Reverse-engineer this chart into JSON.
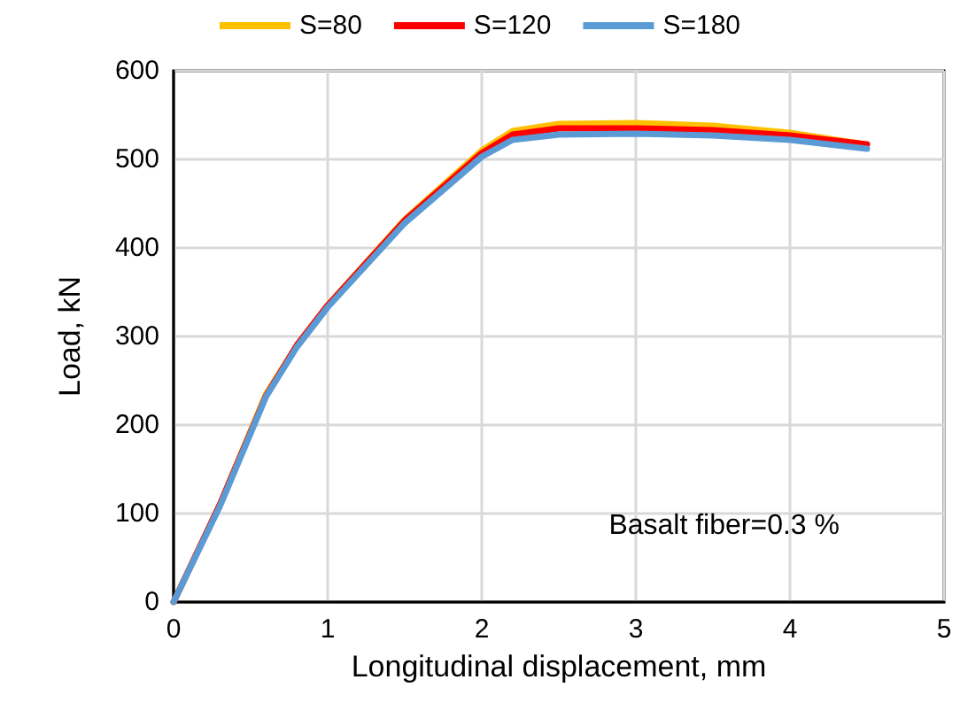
{
  "chart_data": {
    "type": "line",
    "xlabel": "Longitudinal displacement, mm",
    "ylabel": "Load, kN",
    "xlim": [
      0,
      5
    ],
    "xticks": [
      0,
      1,
      2,
      3,
      4,
      5
    ],
    "ylim": [
      0,
      600
    ],
    "yticks": [
      0,
      100,
      200,
      300,
      400,
      500,
      600
    ],
    "grid": true,
    "legend": "top",
    "marker": "none",
    "line_style": "solid",
    "annotations": [
      "Basalt fiber=0.3 %"
    ],
    "series": [
      {
        "name": "S=80",
        "color": "#ffc000",
        "x": [
          0,
          0.3,
          0.6,
          0.8,
          1,
          1.5,
          2,
          2.2,
          2.5,
          3,
          3.5,
          4,
          4.45
        ],
        "values": [
          0,
          110,
          235,
          290,
          335,
          432,
          510,
          532,
          540,
          541,
          538,
          530,
          518
        ]
      },
      {
        "name": "S=120",
        "color": "#ff0000",
        "x": [
          0,
          0.3,
          0.6,
          0.8,
          1,
          1.5,
          2,
          2.2,
          2.5,
          3,
          3.5,
          4,
          4.5
        ],
        "values": [
          0,
          110,
          233,
          290,
          335,
          431,
          507,
          528,
          535,
          535,
          533,
          527,
          517
        ]
      },
      {
        "name": "S=180",
        "color": "#5b9bd5",
        "x": [
          0,
          0.3,
          0.6,
          0.8,
          1,
          1.5,
          2,
          2.2,
          2.5,
          3,
          3.5,
          4,
          4.5
        ],
        "values": [
          0,
          108,
          232,
          288,
          333,
          428,
          503,
          522,
          528,
          529,
          527,
          522,
          512
        ]
      }
    ]
  }
}
